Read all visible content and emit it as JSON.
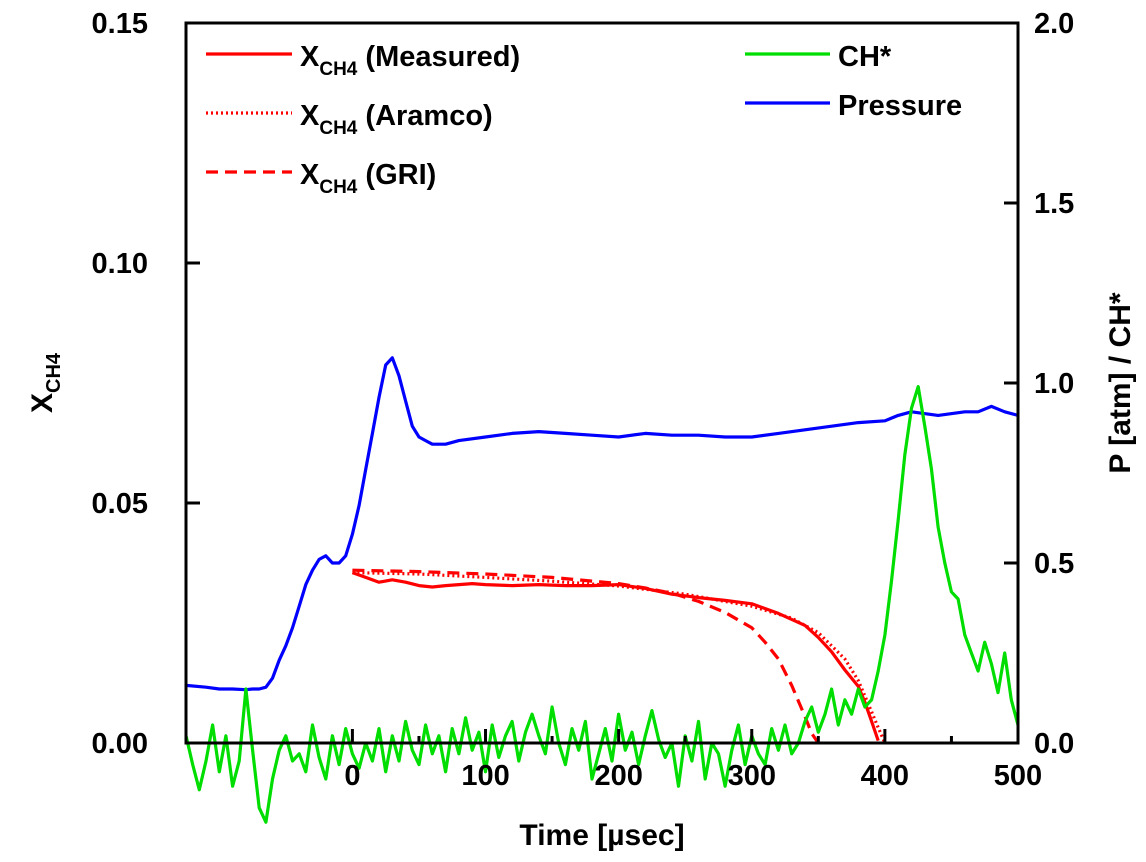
{
  "chart_data": {
    "type": "line",
    "xlabel": "Time [µsec]",
    "ylabel_left": "X",
    "ylabel_left_sub": "CH4",
    "ylabel_right": "P [atm] / CH*",
    "xlim": [
      -125,
      500
    ],
    "ylim_left": [
      0,
      0.15
    ],
    "ylim_right": [
      0,
      2.0
    ],
    "x_ticks": [
      "0",
      "100",
      "200",
      "300",
      "400",
      "500"
    ],
    "y_left_ticks": [
      "0.00",
      "0.05",
      "0.10",
      "0.15"
    ],
    "y_right_ticks": [
      "0.0",
      "0.5",
      "1.0",
      "1.5",
      "2.0"
    ],
    "grid": false,
    "legend_left": [
      {
        "prefix": "X",
        "sub": "CH4",
        "suffix": " (Measured)",
        "style": "solid",
        "color": "#ff0000"
      },
      {
        "prefix": "X",
        "sub": "CH4",
        "suffix": " (Aramco)",
        "style": "dotted",
        "color": "#ff0000"
      },
      {
        "prefix": "X",
        "sub": "CH4",
        "suffix": " (GRI)",
        "style": "dashed",
        "color": "#ff0000"
      }
    ],
    "legend_right": [
      {
        "label": "CH*",
        "style": "solid",
        "color": "#00dd00"
      },
      {
        "label": "Pressure",
        "style": "solid",
        "color": "#0000ff"
      }
    ],
    "series": [
      {
        "axis": "left",
        "color": "#ff0000",
        "style": "solid",
        "x": [
          0,
          10,
          20,
          30,
          40,
          50,
          60,
          70,
          80,
          90,
          100,
          120,
          140,
          160,
          180,
          200,
          220,
          240,
          260,
          280,
          300,
          320,
          340,
          350,
          360,
          370,
          380,
          385,
          390,
          395
        ],
        "y": [
          0.0355,
          0.0345,
          0.0335,
          0.034,
          0.0335,
          0.0328,
          0.0325,
          0.0328,
          0.033,
          0.0332,
          0.033,
          0.0328,
          0.033,
          0.0328,
          0.0328,
          0.033,
          0.0322,
          0.031,
          0.0303,
          0.0297,
          0.029,
          0.027,
          0.0245,
          0.022,
          0.019,
          0.0152,
          0.0118,
          0.0085,
          0.0045,
          0.0005
        ]
      },
      {
        "axis": "left",
        "color": "#ff0000",
        "style": "dotted",
        "x": [
          0,
          50,
          100,
          150,
          200,
          250,
          300,
          330,
          350,
          370,
          380,
          390,
          395,
          400
        ],
        "y": [
          0.0355,
          0.0352,
          0.0345,
          0.0337,
          0.0327,
          0.031,
          0.0285,
          0.026,
          0.023,
          0.0175,
          0.013,
          0.0065,
          0.0032,
          0.0
        ]
      },
      {
        "axis": "left",
        "color": "#ff0000",
        "style": "dashed",
        "x": [
          0,
          50,
          100,
          150,
          200,
          220,
          240,
          260,
          280,
          300,
          310,
          320,
          330,
          340,
          345,
          350
        ],
        "y": [
          0.036,
          0.0357,
          0.0352,
          0.0345,
          0.0332,
          0.0323,
          0.0312,
          0.0295,
          0.0272,
          0.024,
          0.021,
          0.0175,
          0.012,
          0.0055,
          0.002,
          0.0
        ]
      },
      {
        "axis": "right",
        "color": "#0000ff",
        "style": "solid",
        "x": [
          -125,
          -110,
          -100,
          -90,
          -80,
          -75,
          -70,
          -65,
          -60,
          -55,
          -50,
          -45,
          -40,
          -35,
          -30,
          -25,
          -20,
          -15,
          -10,
          -5,
          0,
          5,
          10,
          15,
          20,
          25,
          30,
          35,
          40,
          45,
          50,
          55,
          60,
          70,
          80,
          100,
          120,
          140,
          160,
          180,
          200,
          220,
          240,
          260,
          280,
          300,
          320,
          340,
          360,
          380,
          400,
          410,
          420,
          440,
          460,
          470,
          480,
          490,
          500
        ],
        "y": [
          0.16,
          0.155,
          0.15,
          0.15,
          0.148,
          0.15,
          0.15,
          0.155,
          0.18,
          0.23,
          0.27,
          0.32,
          0.38,
          0.44,
          0.48,
          0.51,
          0.52,
          0.5,
          0.5,
          0.52,
          0.58,
          0.66,
          0.76,
          0.86,
          0.96,
          1.05,
          1.07,
          1.02,
          0.95,
          0.88,
          0.85,
          0.84,
          0.83,
          0.83,
          0.84,
          0.85,
          0.86,
          0.865,
          0.86,
          0.855,
          0.85,
          0.86,
          0.855,
          0.855,
          0.85,
          0.85,
          0.86,
          0.87,
          0.88,
          0.89,
          0.895,
          0.91,
          0.92,
          0.91,
          0.92,
          0.92,
          0.935,
          0.92,
          0.91
        ]
      },
      {
        "axis": "right",
        "color": "#00dd00",
        "style": "solid",
        "x": [
          -125,
          -120,
          -115,
          -110,
          -105,
          -100,
          -95,
          -90,
          -85,
          -80,
          -75,
          -70,
          -65,
          -60,
          -55,
          -50,
          -45,
          -40,
          -35,
          -30,
          -25,
          -20,
          -15,
          -10,
          -5,
          0,
          5,
          10,
          15,
          20,
          25,
          30,
          35,
          40,
          45,
          50,
          55,
          60,
          65,
          70,
          75,
          80,
          85,
          90,
          95,
          100,
          105,
          110,
          115,
          120,
          125,
          130,
          135,
          140,
          145,
          150,
          155,
          160,
          165,
          170,
          175,
          180,
          185,
          190,
          195,
          200,
          205,
          210,
          215,
          220,
          225,
          230,
          235,
          240,
          245,
          250,
          255,
          260,
          265,
          270,
          275,
          280,
          285,
          290,
          295,
          300,
          305,
          310,
          315,
          320,
          325,
          330,
          335,
          340,
          345,
          350,
          355,
          360,
          365,
          370,
          375,
          380,
          385,
          390,
          395,
          400,
          405,
          410,
          415,
          420,
          425,
          430,
          435,
          440,
          445,
          450,
          455,
          460,
          465,
          470,
          475,
          480,
          485,
          490,
          495,
          500
        ],
        "y": [
          0.02,
          -0.06,
          -0.13,
          -0.05,
          0.05,
          -0.08,
          0.02,
          -0.12,
          -0.05,
          0.15,
          -0.02,
          -0.18,
          -0.22,
          -0.1,
          -0.02,
          0.02,
          -0.05,
          -0.03,
          -0.08,
          0.05,
          -0.04,
          -0.1,
          0.02,
          -0.06,
          0.04,
          -0.03,
          -0.07,
          0.0,
          -0.05,
          0.04,
          -0.08,
          0.02,
          -0.05,
          0.06,
          -0.02,
          -0.06,
          0.05,
          -0.03,
          0.02,
          -0.08,
          0.04,
          -0.03,
          0.07,
          -0.02,
          0.03,
          -0.08,
          0.05,
          -0.04,
          0.02,
          0.06,
          -0.05,
          0.03,
          0.08,
          0.02,
          -0.03,
          0.1,
          0.0,
          -0.06,
          0.04,
          -0.02,
          0.06,
          -0.1,
          -0.03,
          0.04,
          -0.05,
          0.08,
          -0.02,
          0.03,
          -0.06,
          0.02,
          0.09,
          0.01,
          -0.04,
          0.0,
          -0.12,
          0.02,
          -0.05,
          0.06,
          -0.1,
          0.0,
          -0.03,
          -0.12,
          -0.02,
          0.05,
          -0.06,
          0.02,
          -0.03,
          -0.06,
          0.04,
          -0.02,
          0.05,
          -0.03,
          0.0,
          0.06,
          0.1,
          0.03,
          0.08,
          0.15,
          0.05,
          0.12,
          0.08,
          0.15,
          0.1,
          0.12,
          0.2,
          0.3,
          0.45,
          0.62,
          0.8,
          0.93,
          0.99,
          0.88,
          0.76,
          0.6,
          0.5,
          0.42,
          0.4,
          0.3,
          0.25,
          0.2,
          0.28,
          0.22,
          0.14,
          0.25,
          0.12,
          0.05
        ]
      }
    ]
  }
}
